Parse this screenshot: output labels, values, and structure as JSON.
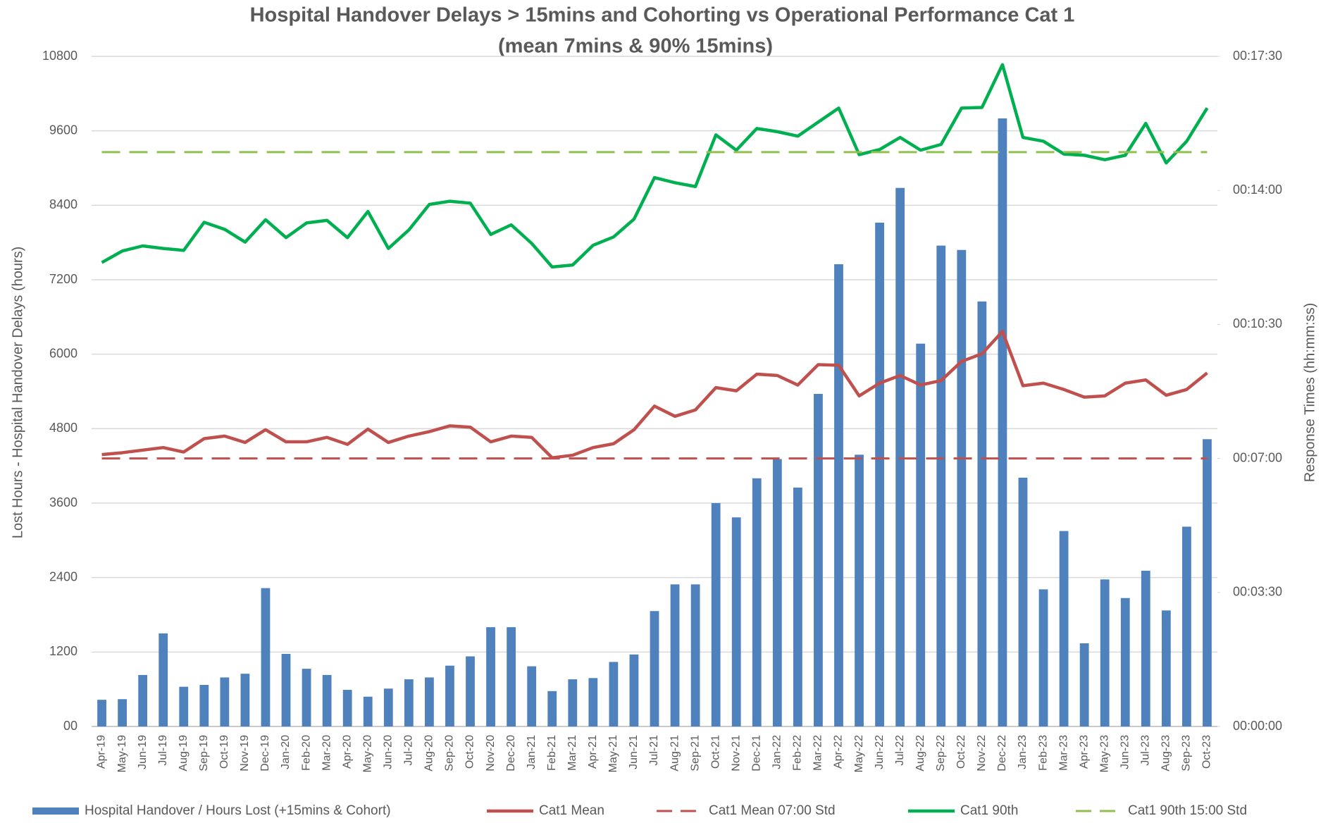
{
  "chart_data": {
    "type": "bar",
    "title": "Hospital Handover Delays > 15mins and Cohorting vs Operational Performance Cat 1",
    "subtitle": "(mean 7mins & 90% 15mins)",
    "y_label": "Lost Hours - Hospital Handover Delays (hours)",
    "y2_label": "Response Times (hh:mm:ss)",
    "categories": [
      "Apr-19",
      "May-19",
      "Jun-19",
      "Jul-19",
      "Aug-19",
      "Sep-19",
      "Oct-19",
      "Nov-19",
      "Dec-19",
      "Jan-20",
      "Feb-20",
      "Mar-20",
      "Apr-20",
      "May-20",
      "Jun-20",
      "Jul-20",
      "Aug-20",
      "Sep-20",
      "Oct-20",
      "Nov-20",
      "Dec-20",
      "Jan-21",
      "Feb-21",
      "Mar-21",
      "Apr-21",
      "May-21",
      "Jun-21",
      "Jul-21",
      "Aug-21",
      "Sep-21",
      "Oct-21",
      "Nov-21",
      "Dec-21",
      "Jan-22",
      "Feb-22",
      "Mar-22",
      "Apr-22",
      "May-22",
      "Jun-22",
      "Jul-22",
      "Aug-22",
      "Sep-22",
      "Oct-22",
      "Nov-22",
      "Dec-22",
      "Jan-23",
      "Feb-23",
      "Mar-23",
      "Apr-23",
      "May-23",
      "Jun-23",
      "Jul-23",
      "Aug-23",
      "Sep-23",
      "Oct-23"
    ],
    "series": [
      {
        "name": "Hospital Handover / Hours Lost (+15mins & Cohort)",
        "type": "bar",
        "color": "#4f81bd",
        "values": [
          430,
          440,
          830,
          1500,
          640,
          670,
          790,
          850,
          2230,
          1170,
          930,
          830,
          590,
          480,
          610,
          760,
          790,
          980,
          1130,
          1600,
          1600,
          970,
          570,
          760,
          780,
          1040,
          1160,
          1860,
          2290,
          2290,
          3600,
          3370,
          4000,
          4310,
          3850,
          5360,
          7450,
          4380,
          8120,
          8680,
          6170,
          7750,
          7680,
          6850,
          9800,
          4010,
          2210,
          3150,
          1340,
          2370,
          2070,
          2510,
          1870,
          3220,
          4630
        ]
      },
      {
        "name": "Cat1 Mean",
        "type": "line",
        "axis": "y2",
        "color": "#c0504d",
        "dashed": false,
        "values": [
          426,
          429,
          433,
          437,
          430,
          451,
          455,
          445,
          465,
          446,
          446,
          453,
          442,
          466,
          445,
          455,
          462,
          471,
          469,
          446,
          455,
          453,
          421,
          425,
          437,
          443,
          465,
          502,
          486,
          496,
          531,
          526,
          552,
          550,
          535,
          567,
          566,
          518,
          538,
          550,
          535,
          542,
          572,
          584,
          619,
          534,
          538,
          528,
          516,
          518,
          538,
          543,
          519,
          528,
          554
        ]
      },
      {
        "name": "Cat1 Mean 07:00 Std",
        "type": "line",
        "axis": "y2",
        "color": "#c0504d",
        "dashed": true,
        "values": [
          420,
          420,
          420,
          420,
          420,
          420,
          420,
          420,
          420,
          420,
          420,
          420,
          420,
          420,
          420,
          420,
          420,
          420,
          420,
          420,
          420,
          420,
          420,
          420,
          420,
          420,
          420,
          420,
          420,
          420,
          420,
          420,
          420,
          420,
          420,
          420,
          420,
          420,
          420,
          420,
          420,
          420,
          420,
          420,
          420,
          420,
          420,
          420,
          420,
          420,
          420,
          420,
          420,
          420,
          420
        ]
      },
      {
        "name": "Cat1 90th",
        "type": "line",
        "axis": "y2",
        "color": "#00b050",
        "dashed": false,
        "values": [
          727,
          745,
          753,
          749,
          746,
          790,
          779,
          759,
          794,
          766,
          789,
          793,
          766,
          807,
          749,
          778,
          818,
          823,
          820,
          771,
          786,
          757,
          720,
          723,
          754,
          767,
          795,
          860,
          852,
          846,
          927,
          903,
          937,
          932,
          925,
          947,
          969,
          896,
          904,
          923,
          903,
          912,
          969,
          970,
          1037,
          923,
          917,
          897,
          895,
          888,
          895,
          945,
          883,
          917,
          969
        ]
      },
      {
        "name": "Cat1 90th 15:00 Std",
        "type": "line",
        "axis": "y2",
        "color": "#92c050",
        "dashed": true,
        "values": [
          900,
          900,
          900,
          900,
          900,
          900,
          900,
          900,
          900,
          900,
          900,
          900,
          900,
          900,
          900,
          900,
          900,
          900,
          900,
          900,
          900,
          900,
          900,
          900,
          900,
          900,
          900,
          900,
          900,
          900,
          900,
          900,
          900,
          900,
          900,
          900,
          900,
          900,
          900,
          900,
          900,
          900,
          900,
          900,
          900,
          900,
          900,
          900,
          900,
          900,
          900,
          900,
          900,
          900,
          900
        ]
      }
    ],
    "ylim": [
      0,
      10800
    ],
    "yticks": [
      {
        "value": 0,
        "label": "00"
      },
      1200,
      2400,
      3600,
      4800,
      6000,
      7200,
      8400,
      9600,
      10800
    ],
    "y2lim": [
      0,
      1050
    ],
    "y2ticks": [
      {
        "value": 0,
        "label": "00:00:00"
      },
      {
        "value": 210,
        "label": "00:03:30"
      },
      {
        "value": 420,
        "label": "00:07:00"
      },
      {
        "value": 630,
        "label": "00:10:30"
      },
      {
        "value": 840,
        "label": "00:14:00"
      },
      {
        "value": 1050,
        "label": "00:17:30"
      }
    ],
    "grid": true,
    "legend": "bottom"
  }
}
